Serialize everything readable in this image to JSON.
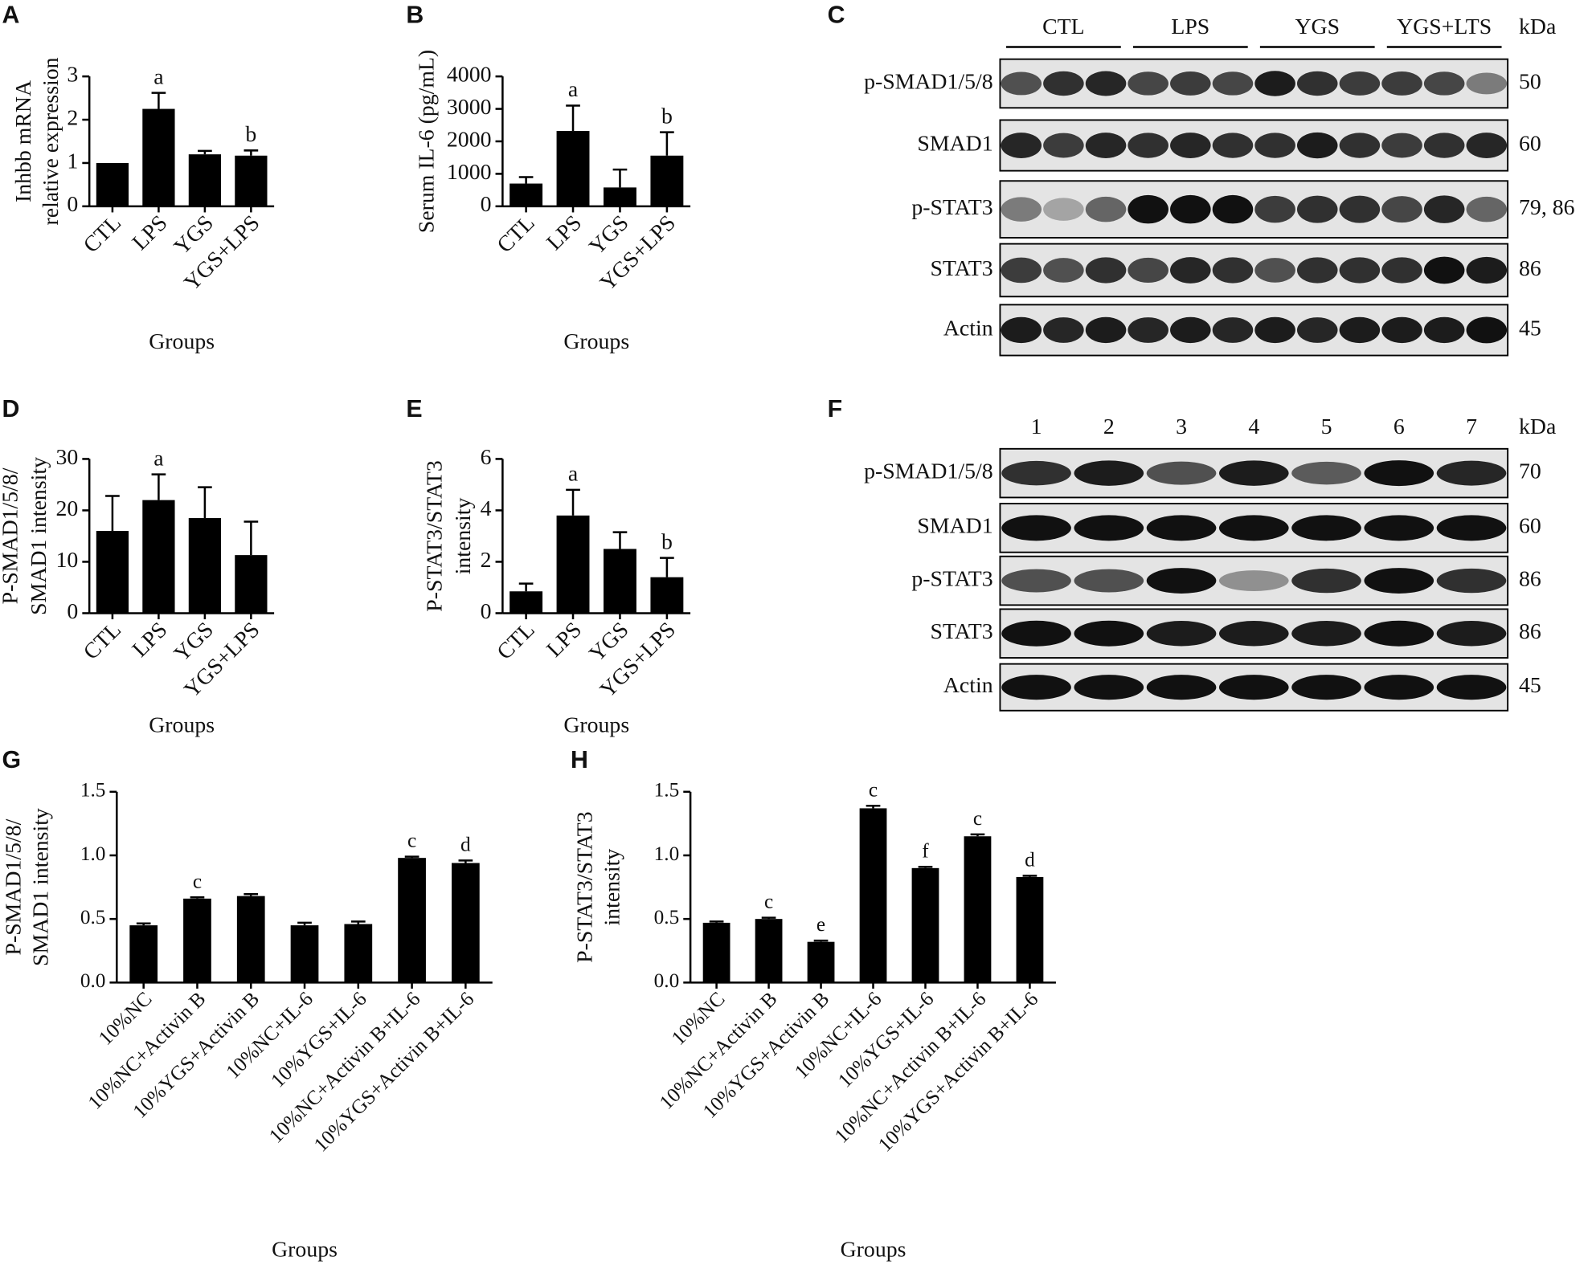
{
  "chart_data": [
    {
      "type": "bar",
      "panel": "A",
      "ylabel": [
        "Inhbb mRNA",
        "relative expression"
      ],
      "xlabel": "Groups",
      "categories": [
        "CTL",
        "LPS",
        "YGS",
        "YGS+LPS"
      ],
      "values": [
        1.0,
        2.25,
        1.2,
        1.17
      ],
      "errors": [
        0,
        0.37,
        0.08,
        0.12
      ],
      "annotations": [
        null,
        "a",
        null,
        "b"
      ],
      "color": "#000000",
      "ylim": [
        0,
        3
      ],
      "yticks": [
        0,
        1,
        2,
        3
      ]
    },
    {
      "type": "bar",
      "panel": "B",
      "ylabel": [
        "Serum IL-6 (pg/mL)"
      ],
      "xlabel": "Groups",
      "categories": [
        "CTL",
        "LPS",
        "YGS",
        "YGS+LPS"
      ],
      "values": [
        700,
        2320,
        580,
        1560
      ],
      "errors": [
        200,
        780,
        550,
        720
      ],
      "annotations": [
        null,
        "a",
        null,
        "b"
      ],
      "color": "#000000",
      "ylim": [
        0,
        4000
      ],
      "yticks": [
        0,
        1000,
        2000,
        3000,
        4000
      ]
    },
    {
      "type": "bar",
      "panel": "D",
      "ylabel": [
        "P-SMAD1/5/8/",
        "SMAD1 intensity"
      ],
      "xlabel": "Groups",
      "categories": [
        "CTL",
        "LPS",
        "YGS",
        "YGS+LPS"
      ],
      "values": [
        16,
        22,
        18.5,
        11.3
      ],
      "errors": [
        6.8,
        5,
        6,
        6.5
      ],
      "annotations": [
        null,
        "a",
        null,
        null
      ],
      "color": "#000000",
      "ylim": [
        0,
        30
      ],
      "yticks": [
        0,
        10,
        20,
        30
      ]
    },
    {
      "type": "bar",
      "panel": "E",
      "ylabel": [
        "P-STAT3/STAT3",
        "intensity"
      ],
      "xlabel": "Groups",
      "categories": [
        "CTL",
        "LPS",
        "YGS",
        "YGS+LPS"
      ],
      "values": [
        0.85,
        3.8,
        2.5,
        1.4
      ],
      "errors": [
        0.3,
        1.0,
        0.65,
        0.75
      ],
      "annotations": [
        null,
        "a",
        null,
        "b"
      ],
      "color": "#000000",
      "ylim": [
        0,
        6
      ],
      "yticks": [
        0,
        2,
        4,
        6
      ]
    },
    {
      "type": "bar",
      "panel": "G",
      "ylabel": [
        "P-SMAD1/5/8/",
        "SMAD1 intensity"
      ],
      "xlabel": "Groups",
      "categories": [
        "10%NC",
        "10%NC+Activin B",
        "10%YGS+Activin B",
        "10%NC+IL-6",
        "10%YGS+IL-6",
        "10%NC+Activin B+IL-6",
        "10%YGS+Activin B+IL-6"
      ],
      "values": [
        0.45,
        0.66,
        0.68,
        0.45,
        0.46,
        0.98,
        0.94
      ],
      "errors": [
        0.015,
        0.01,
        0.015,
        0.02,
        0.02,
        0.01,
        0.02
      ],
      "annotations": [
        null,
        "c",
        null,
        null,
        null,
        "c",
        "d"
      ],
      "color": "#000000",
      "ylim": [
        0,
        1.5
      ],
      "yticks": [
        {
          "value": 0,
          "label": "0.0"
        },
        0.5,
        {
          "value": 1,
          "label": "1.0"
        },
        1.5
      ]
    },
    {
      "type": "bar",
      "panel": "H",
      "ylabel": [
        "P-STAT3/STAT3",
        "intensity"
      ],
      "xlabel": "Groups",
      "categories": [
        "10%NC",
        "10%NC+Activin B",
        "10%YGS+Activin B",
        "10%NC+IL-6",
        "10%YGS+IL-6",
        "10%NC+Activin B+IL-6",
        "10%YGS+Activin B+IL-6"
      ],
      "values": [
        0.47,
        0.5,
        0.32,
        1.37,
        0.9,
        1.15,
        0.83
      ],
      "errors": [
        0.01,
        0.01,
        0.01,
        0.02,
        0.01,
        0.015,
        0.01
      ],
      "annotations": [
        null,
        "c",
        "e",
        "c",
        "f",
        "c",
        "d"
      ],
      "color": "#000000",
      "ylim": [
        0,
        1.5
      ],
      "yticks": [
        {
          "value": 0,
          "label": "0.0"
        },
        0.5,
        {
          "value": 1,
          "label": "1.0"
        },
        1.5
      ]
    }
  ],
  "blots": [
    {
      "panel": "C",
      "groups": [
        "CTL",
        "LPS",
        "YGS",
        "YGS+LTS"
      ],
      "unit": "kDa",
      "rows": [
        {
          "label": "p-SMAD1/5/8",
          "size": "50"
        },
        {
          "label": "SMAD1",
          "size": "60"
        },
        {
          "label": "p-STAT3",
          "size": "79, 86"
        },
        {
          "label": "STAT3",
          "size": "86"
        },
        {
          "label": "Actin",
          "size": "45"
        }
      ]
    },
    {
      "panel": "F",
      "lanes": [
        "1",
        "2",
        "3",
        "4",
        "5",
        "6",
        "7"
      ],
      "unit": "kDa",
      "rows": [
        {
          "label": "p-SMAD1/5/8",
          "size": "70"
        },
        {
          "label": "SMAD1",
          "size": "60"
        },
        {
          "label": "p-STAT3",
          "size": "86"
        },
        {
          "label": "STAT3",
          "size": "86"
        },
        {
          "label": "Actin",
          "size": "45"
        }
      ]
    }
  ]
}
